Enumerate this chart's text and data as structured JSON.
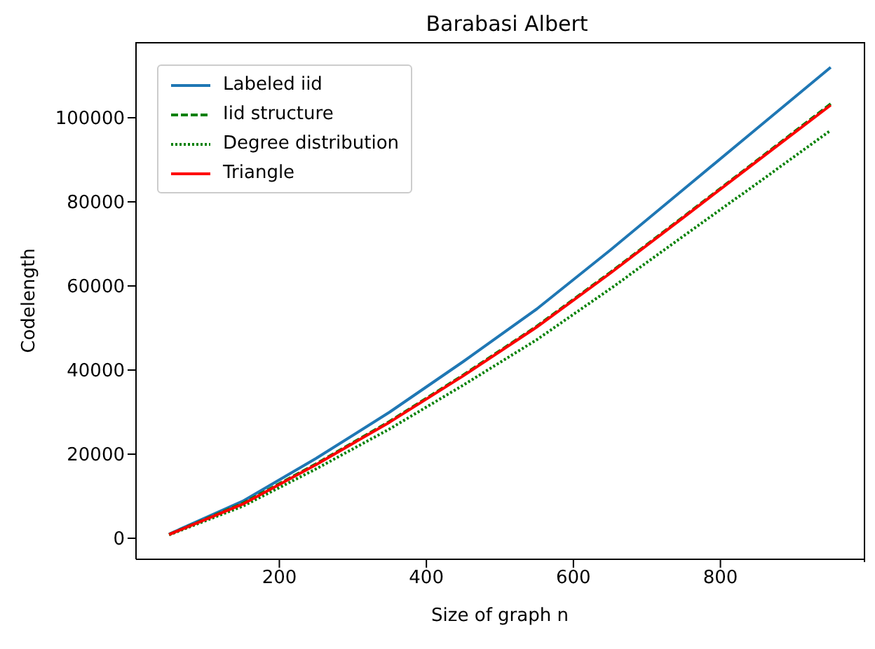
{
  "chart_data": {
    "type": "line",
    "title": "Barabasi Albert",
    "xlabel": "Size of graph n",
    "ylabel": "Codelength",
    "x": [
      50,
      150,
      250,
      350,
      450,
      550,
      650,
      750,
      850,
      950
    ],
    "series": [
      {
        "name": "Labeled iid",
        "color": "#1f77b4",
        "line_style": "solid",
        "values": [
          1000,
          8800,
          19000,
          30000,
          42000,
          54500,
          68500,
          83000,
          97500,
          112000
        ]
      },
      {
        "name": "Iid structure",
        "color": "#008000",
        "line_style": "dashed",
        "values": [
          900,
          8300,
          17700,
          27800,
          38800,
          50400,
          63200,
          76500,
          89900,
          103300
        ]
      },
      {
        "name": "Degree distribution",
        "color": "#008000",
        "line_style": "dotted",
        "values": [
          800,
          7600,
          16500,
          26000,
          36400,
          47200,
          59300,
          71900,
          84400,
          97000
        ]
      },
      {
        "name": "Triangle",
        "color": "#ff0000",
        "line_style": "solid",
        "values": [
          900,
          8100,
          17500,
          27600,
          38600,
          50200,
          63000,
          76300,
          89700,
          103000
        ]
      }
    ],
    "xlim": [
      5,
      995
    ],
    "xticks": [
      200,
      400,
      600,
      800
    ],
    "ylim": [
      -5000,
      118000
    ],
    "yticks": [
      0,
      20000,
      40000,
      60000,
      80000,
      100000
    ],
    "grid": false,
    "legend": "top left",
    "marker": "none"
  }
}
